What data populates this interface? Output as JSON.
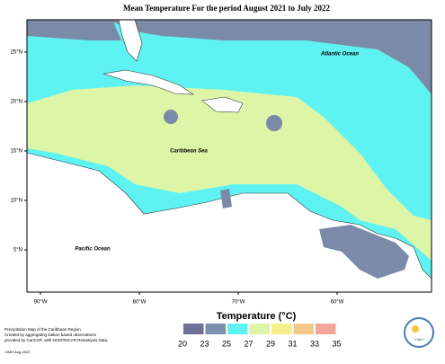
{
  "map": {
    "title": "Mean Temperature For the period August 2021 to July 2022",
    "labels": {
      "atlantic": "Atlantic Ocean",
      "caribbean": "Caribbean Sea",
      "pacific": "Pacific Ocean"
    },
    "lon_ticks": [
      {
        "value": -90,
        "label": "90°W"
      },
      {
        "value": -80,
        "label": "80°W"
      },
      {
        "value": -70,
        "label": "70°W"
      },
      {
        "value": -60,
        "label": "60°W"
      }
    ],
    "lat_ticks": [
      {
        "value": 25,
        "label": "25°N"
      },
      {
        "value": 20,
        "label": "20°N"
      },
      {
        "value": 15,
        "label": "15°N"
      },
      {
        "value": 10,
        "label": "10°N"
      },
      {
        "value": 5,
        "label": "5°N"
      }
    ],
    "legend": {
      "title": "Temperature (°C)",
      "ticks": [
        20,
        23,
        25,
        27,
        29,
        31,
        33,
        35
      ],
      "colors": [
        "#6e6e98",
        "#7d8fae",
        "#5ef2f2",
        "#dcf5a6",
        "#f7ee8a",
        "#f5c98a",
        "#f2a79a"
      ]
    },
    "footer": [
      "Precipitation Map of the Caribbean Region.",
      "Created by aggregating station based observations",
      "provided by CariCOF, with NCEP/NCAR Reanalysis Data."
    ],
    "credit": "CIMH Aug-2022",
    "logo": "CIMH"
  }
}
